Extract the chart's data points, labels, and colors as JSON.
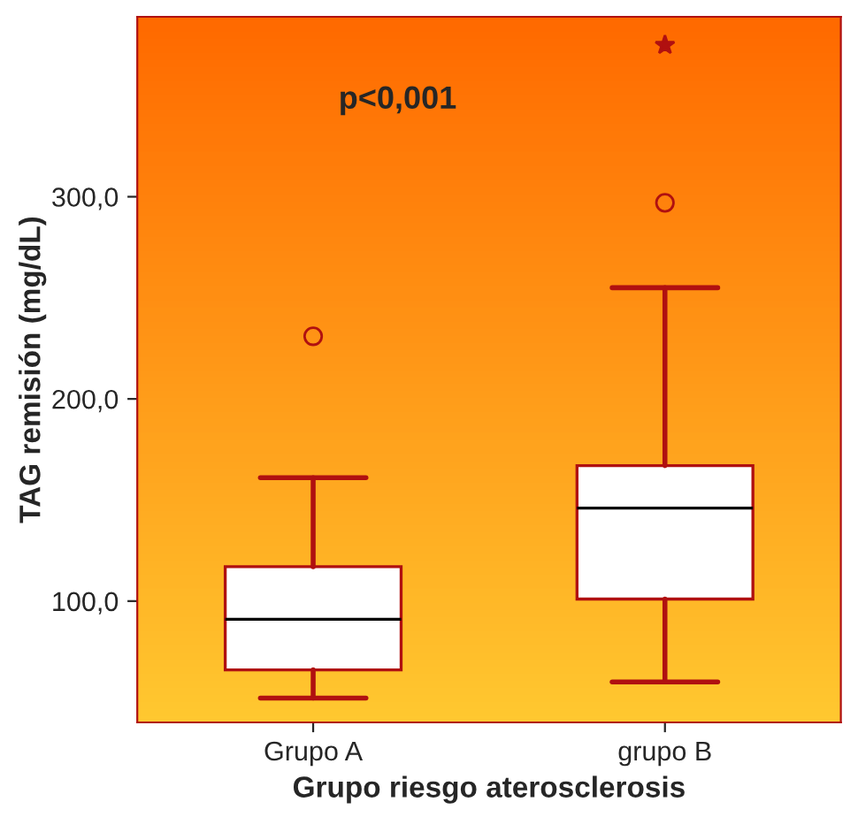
{
  "chart_data": {
    "type": "box",
    "xlabel": "Grupo riesgo aterosclerosis",
    "ylabel": "TAG remisión (mg/dL)",
    "categories": [
      "Grupo A",
      "grupo B"
    ],
    "boxes": [
      {
        "low": 52,
        "q1": 66,
        "median": 91,
        "q3": 117,
        "high": 161,
        "outliers": [
          231
        ]
      },
      {
        "low": 60,
        "q1": 101,
        "median": 146,
        "q3": 167,
        "high": 255,
        "outliers": [
          297,
          375
        ]
      }
    ],
    "color": "#ffffff",
    "ylim": [
      40,
      389
    ],
    "yticks": [
      {
        "value": 100,
        "label": "100,0"
      },
      {
        "value": 200,
        "label": "200,0"
      },
      {
        "value": 300,
        "label": "300,0"
      }
    ],
    "annotations": [
      "p<0,001"
    ],
    "grid": false,
    "legend": false
  }
}
